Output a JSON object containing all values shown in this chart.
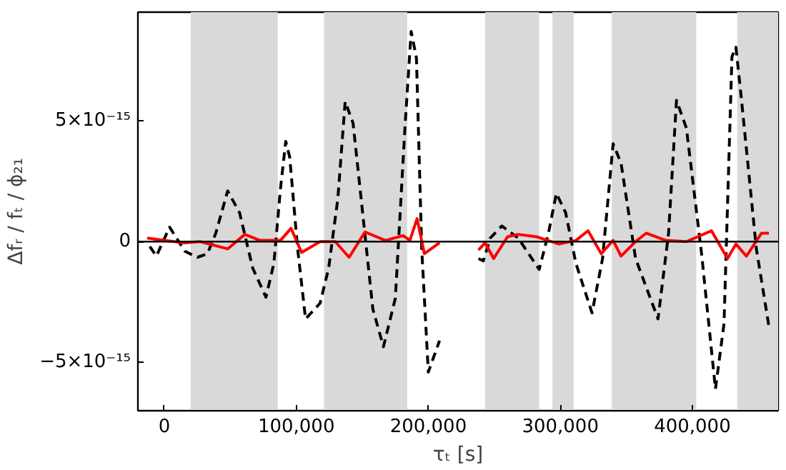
{
  "chart_data": {
    "type": "line",
    "xlabel": "τₜ [s]",
    "ylabel": "Δfᵣ / fₜ / ϕ₂₁",
    "xlim": [
      -20000,
      465000
    ],
    "ylim": [
      -7e-15,
      9.5e-15
    ],
    "xticks": [
      0,
      {
        "value": 100000,
        "label": "100,000"
      },
      {
        "value": 200000,
        "label": "200,000"
      },
      {
        "value": 300000,
        "label": "300,000"
      },
      {
        "value": 400000,
        "label": "400,000"
      }
    ],
    "yticks": [
      {
        "value": -5e-15,
        "label": "−5×10⁻¹⁵"
      },
      0,
      {
        "value": 5e-15,
        "label": "5×10⁻¹⁵"
      }
    ],
    "grid": false,
    "marker": "none",
    "series": [
      {
        "color": "#000000",
        "line_style": "dashed",
        "x": [
          -11000,
          -6000,
          4000,
          15600,
          25000,
          32700,
          39000,
          48000,
          57000,
          67000,
          77000,
          83000,
          88000,
          92000,
          95000,
          101000,
          107000,
          118000,
          124500,
          131500,
          137000,
          143000,
          151000,
          158000,
          166000,
          175000,
          182500,
          187000,
          191000,
          195000,
          200000,
          208500,
          223000,
          238000,
          241600,
          247000,
          255700,
          268000,
          284000,
          291000,
          297000,
          304000,
          311800,
          324000,
          332000,
          340000,
          346000,
          357000,
          374000,
          382000,
          388000,
          395500,
          407000,
          417500,
          424000,
          430000,
          433000,
          437000,
          448500,
          458000
        ],
        "values": [
          -2e-16,
          -6e-16,
          6e-16,
          -4e-16,
          -6.5e-16,
          -5e-16,
          3.5e-16,
          2.1e-15,
          1.2e-15,
          -1.1e-15,
          -2.3e-15,
          -9e-16,
          2.2e-15,
          4.15e-15,
          3.5e-15,
          -3e-16,
          -3.2e-15,
          -2.55e-15,
          -1.1e-15,
          1.8e-15,
          5.8e-15,
          4.9e-15,
          8e-16,
          -2.8e-15,
          -4.35e-15,
          -2.35e-15,
          4.9e-15,
          8.7e-15,
          7.6e-15,
          -3e-16,
          -5.4e-15,
          -4.1e-15,
          null,
          -7e-16,
          -8e-16,
          1.5e-16,
          6.5e-16,
          1.5e-16,
          -1.15e-15,
          3.5e-16,
          2e-15,
          1.2e-15,
          -9e-16,
          -2.95e-15,
          -7e-16,
          4.05e-15,
          3.25e-15,
          -7e-16,
          -3.2e-15,
          3.5e-16,
          5.85e-15,
          4.7e-15,
          -5e-16,
          -6.1e-15,
          -3.4e-15,
          7.65e-15,
          8.05e-15,
          6e-15,
          -3e-16,
          -3.5e-15
        ]
      },
      {
        "color": "#ff0000",
        "line_style": "solid",
        "x": [
          -13000,
          0,
          15600,
          27000,
          48000,
          61000,
          72500,
          88000,
          96000,
          104000,
          118000,
          129500,
          140000,
          152000,
          167500,
          181000,
          186000,
          191500,
          197000,
          208500,
          223000,
          238000,
          243000,
          249500,
          260000,
          268000,
          282000,
          299000,
          311800,
          321000,
          331000,
          340000,
          346000,
          357000,
          365000,
          380000,
          395500,
          414500,
          426600,
          433000,
          441000,
          452400,
          458000
        ],
        "values": [
          1.5e-16,
          5e-17,
          -5e-17,
          0,
          -3e-16,
          3e-16,
          5e-17,
          5e-17,
          5.5e-16,
          -4.5e-16,
          0,
          0,
          -6.5e-16,
          4e-16,
          5e-17,
          2.5e-16,
          5e-17,
          9.5e-16,
          -5e-16,
          -5e-17,
          null,
          -3.5e-16,
          -5e-17,
          -7e-16,
          2e-16,
          3e-16,
          2e-16,
          -1e-16,
          5e-17,
          4.5e-16,
          -5e-16,
          5e-17,
          -6e-16,
          0,
          3.5e-16,
          5e-17,
          0,
          4.5e-16,
          -7e-16,
          -1e-16,
          -6e-16,
          3.5e-16,
          3.5e-16
        ]
      }
    ],
    "ref_lines": [
      {
        "axis": "y",
        "value": 0,
        "color": "#000000"
      }
    ],
    "bands": [
      {
        "axis": "x",
        "from": 20000,
        "to": 86000,
        "color": "#d9d9d9"
      },
      {
        "axis": "x",
        "from": 121000,
        "to": 184000,
        "color": "#d9d9d9"
      },
      {
        "axis": "x",
        "from": 243000,
        "to": 284000,
        "color": "#d9d9d9"
      },
      {
        "axis": "x",
        "from": 294000,
        "to": 310000,
        "color": "#d9d9d9"
      },
      {
        "axis": "x",
        "from": 339000,
        "to": 403000,
        "color": "#d9d9d9"
      },
      {
        "axis": "x",
        "from": 434000,
        "to": 465000,
        "color": "#d9d9d9"
      }
    ]
  }
}
